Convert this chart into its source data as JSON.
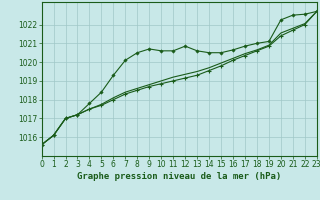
{
  "title": "Graphe pression niveau de la mer (hPa)",
  "background_color": "#c8e8e8",
  "grid_color": "#a0c8c8",
  "line_color": "#1a5c1a",
  "x_hours": [
    0,
    1,
    2,
    3,
    4,
    5,
    6,
    7,
    8,
    9,
    10,
    11,
    12,
    13,
    14,
    15,
    16,
    17,
    18,
    19,
    20,
    21,
    22,
    23
  ],
  "series": [
    [
      1015.6,
      1016.1,
      1017.0,
      1017.2,
      1017.8,
      1018.4,
      1019.3,
      1020.1,
      1020.5,
      1020.7,
      1020.6,
      1020.6,
      1020.85,
      1020.6,
      1020.5,
      1020.5,
      1020.65,
      1020.85,
      1021.0,
      1021.1,
      1022.25,
      1022.5,
      1022.55,
      1022.7
    ],
    [
      1015.6,
      1016.1,
      1017.0,
      1017.2,
      1017.5,
      1017.7,
      1018.0,
      1018.3,
      1018.5,
      1018.7,
      1018.85,
      1019.0,
      1019.15,
      1019.3,
      1019.55,
      1019.8,
      1020.1,
      1020.35,
      1020.6,
      1020.85,
      1021.4,
      1021.7,
      1022.0,
      1022.7
    ],
    [
      1015.6,
      1016.1,
      1017.0,
      1017.2,
      1017.5,
      1017.75,
      1018.1,
      1018.4,
      1018.6,
      1018.8,
      1019.0,
      1019.2,
      1019.35,
      1019.5,
      1019.7,
      1019.95,
      1020.2,
      1020.45,
      1020.65,
      1020.9,
      1021.55,
      1021.8,
      1022.05,
      1022.7
    ]
  ],
  "ylim": [
    1015.0,
    1023.2
  ],
  "yticks": [
    1016,
    1017,
    1018,
    1019,
    1020,
    1021,
    1022
  ],
  "xlim": [
    0,
    23
  ],
  "title_fontsize": 6.5,
  "tick_fontsize": 5.5
}
